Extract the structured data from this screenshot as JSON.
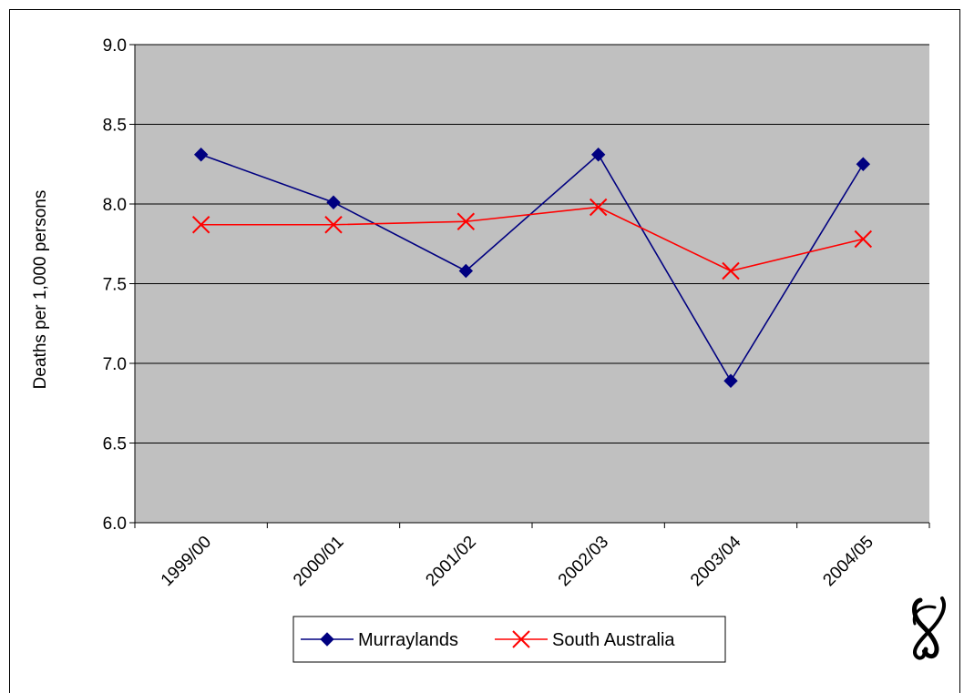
{
  "chart_data": {
    "type": "line",
    "categories": [
      "1999/00",
      "2000/01",
      "2001/02",
      "2002/03",
      "2003/04",
      "2004/05"
    ],
    "series": [
      {
        "name": "Murraylands",
        "values": [
          8.31,
          8.01,
          7.58,
          8.31,
          6.89,
          8.25
        ],
        "color": "#000080",
        "marker": "diamond"
      },
      {
        "name": "South Australia",
        "values": [
          7.87,
          7.87,
          7.89,
          7.98,
          7.58,
          7.78
        ],
        "color": "#ff0000",
        "marker": "x"
      }
    ],
    "title": "",
    "xlabel": "",
    "ylabel": "Deaths per 1,000 persons",
    "ylim": [
      6.0,
      9.0
    ],
    "yticks": [
      "6.0",
      "6.5",
      "7.0",
      "7.5",
      "8.0",
      "8.5",
      "9.0"
    ],
    "grid": "horizontal",
    "plot_background": "#c0c0c0",
    "legend_position": "bottom"
  },
  "logo": {
    "icon": "swirl-logo-icon"
  }
}
